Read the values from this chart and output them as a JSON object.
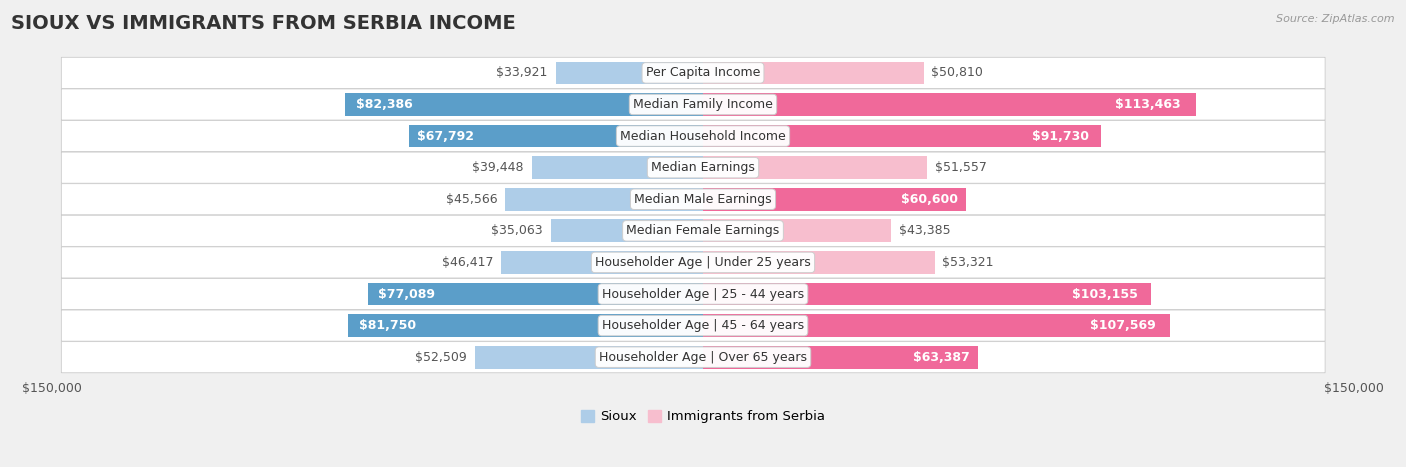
{
  "title": "SIOUX VS IMMIGRANTS FROM SERBIA INCOME",
  "source": "Source: ZipAtlas.com",
  "categories": [
    "Per Capita Income",
    "Median Family Income",
    "Median Household Income",
    "Median Earnings",
    "Median Male Earnings",
    "Median Female Earnings",
    "Householder Age | Under 25 years",
    "Householder Age | 25 - 44 years",
    "Householder Age | 45 - 64 years",
    "Householder Age | Over 65 years"
  ],
  "sioux_values": [
    33921,
    82386,
    67792,
    39448,
    45566,
    35063,
    46417,
    77089,
    81750,
    52509
  ],
  "serbia_values": [
    50810,
    113463,
    91730,
    51557,
    60600,
    43385,
    53321,
    103155,
    107569,
    63387
  ],
  "sioux_labels": [
    "$33,921",
    "$82,386",
    "$67,792",
    "$39,448",
    "$45,566",
    "$35,063",
    "$46,417",
    "$77,089",
    "$81,750",
    "$52,509"
  ],
  "serbia_labels": [
    "$50,810",
    "$113,463",
    "$91,730",
    "$51,557",
    "$60,600",
    "$43,385",
    "$53,321",
    "$103,155",
    "$107,569",
    "$63,387"
  ],
  "sioux_color_light": "#aecde8",
  "sioux_color_dark": "#5b9ec9",
  "serbia_color_light": "#f7bece",
  "serbia_color_dark": "#f0699a",
  "sioux_threshold": 55000,
  "serbia_threshold": 55000,
  "max_value": 150000,
  "background_color": "#f0f0f0",
  "row_bg_color": "#ffffff",
  "row_border_color": "#cccccc",
  "legend_sioux": "Sioux",
  "legend_serbia": "Immigrants from Serbia",
  "bar_height": 0.72,
  "title_fontsize": 14,
  "label_fontsize": 9,
  "category_fontsize": 9,
  "axis_label_fontsize": 9,
  "outside_label_color": "#555555",
  "inside_label_color": "#ffffff"
}
